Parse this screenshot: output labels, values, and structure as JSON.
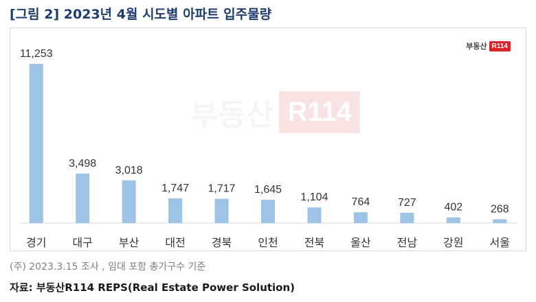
{
  "figure": {
    "title": "[그림 2] 2023년 4월 시도별 아파트 입주물량",
    "note": "(주) 2023.3.15 조사 , 임대 포함 총가구수 기준",
    "source": "자료: 부동산R114 REPS(Real Estate Power Solution)"
  },
  "logo": {
    "text": "부동산",
    "badge": "R114"
  },
  "watermark": {
    "text": "부동산",
    "badge": "R114"
  },
  "colors": {
    "bar": "#9dc3e6",
    "title": "#1f3c6e",
    "brand_red": "#d9262b"
  },
  "chart_data": {
    "type": "bar",
    "title": "",
    "xlabel": "",
    "ylabel": "",
    "grid": false,
    "categories": [
      "경기",
      "대구",
      "부산",
      "대전",
      "경북",
      "인천",
      "전북",
      "울산",
      "전남",
      "강원",
      "서울"
    ],
    "values": [
      11253,
      3498,
      3018,
      1747,
      1717,
      1645,
      1104,
      764,
      727,
      402,
      268
    ],
    "value_labels": [
      "11,253",
      "3,498",
      "3,018",
      "1,747",
      "1,717",
      "1,645",
      "1,104",
      "764",
      "727",
      "402",
      "268"
    ],
    "ylim": [
      0,
      11253
    ]
  }
}
